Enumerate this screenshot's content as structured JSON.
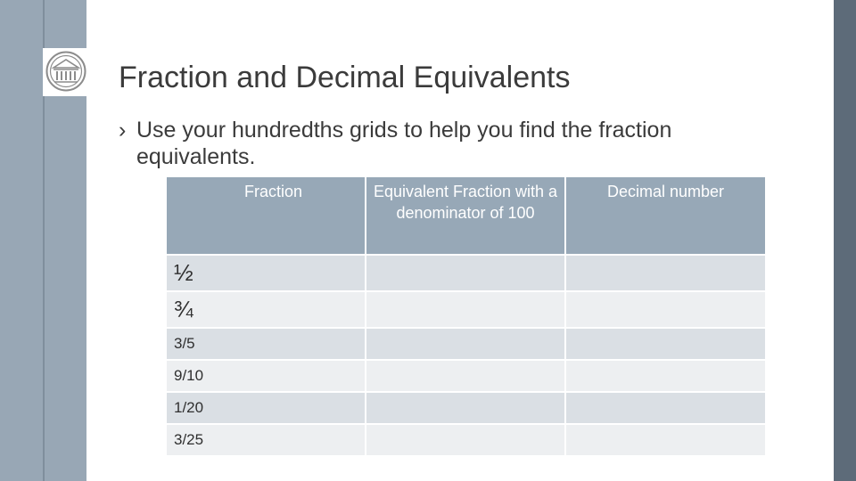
{
  "slide": {
    "title": "Fraction and Decimal Equivalents",
    "bullet_marker": "›",
    "bullet_text": "Use your hundredths grids to help you find the fraction equivalents.",
    "logo_icon": "columned-building-seal-icon"
  },
  "colors": {
    "stripe": "#98a7b5",
    "stripe_dark": "#5d6b79",
    "table_header": "#97a8b7",
    "row_a": "#dadfe4",
    "row_b": "#edeff1"
  },
  "table": {
    "headers": [
      "Fraction",
      "Equivalent Fraction with a denominator of 100",
      "Decimal number"
    ],
    "rows": [
      [
        "½",
        "",
        ""
      ],
      [
        "¾",
        "",
        ""
      ],
      [
        "3/5",
        "",
        ""
      ],
      [
        "9/10",
        "",
        ""
      ],
      [
        "1/20",
        "",
        ""
      ],
      [
        "3/25",
        "",
        ""
      ]
    ]
  }
}
